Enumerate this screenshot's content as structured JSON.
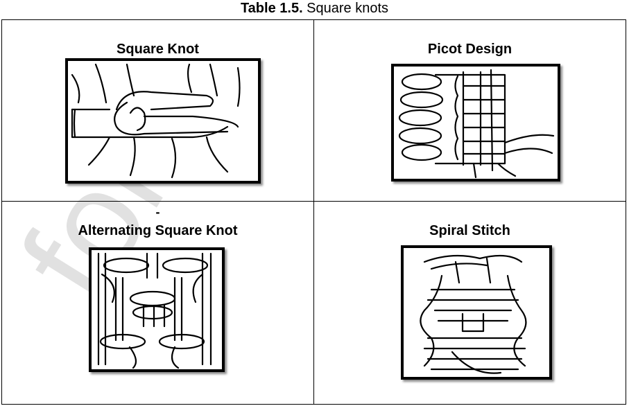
{
  "caption": {
    "label": "Table 1.5.",
    "text": " Square knots"
  },
  "cells": [
    {
      "title": "Square Knot"
    },
    {
      "title": "Picot Design"
    },
    {
      "prefix": "-",
      "title": "Alternating Square Knot"
    },
    {
      "title": "Spiral Stitch"
    }
  ],
  "watermark": {
    "text": "for A",
    "color": "#d9d9d9"
  }
}
